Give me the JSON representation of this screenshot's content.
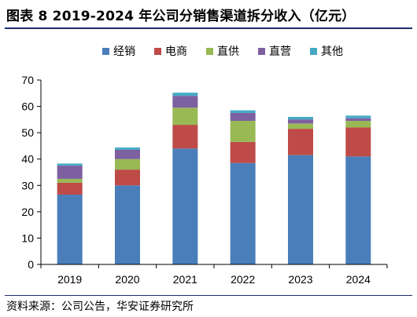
{
  "title": "图表 8 2019-2024 年公司分销售渠道拆分收入（亿元）",
  "source": "资料来源：公司公告，华安证券研究所",
  "chart_data": {
    "type": "bar",
    "stacked": true,
    "categories": [
      "2019",
      "2020",
      "2021",
      "2022",
      "2023",
      "2024"
    ],
    "ylim": [
      0,
      70
    ],
    "yticks": [
      0,
      10,
      20,
      30,
      40,
      50,
      60,
      70
    ],
    "legend_position": "top",
    "grid": false,
    "series": [
      {
        "name": "经销",
        "color": "#4a7ebb",
        "values": [
          26.5,
          30,
          44,
          38.5,
          41.5,
          41
        ]
      },
      {
        "name": "电商",
        "color": "#be4b48",
        "values": [
          4.5,
          6,
          9,
          8,
          10,
          11
        ]
      },
      {
        "name": "直供",
        "color": "#98b954",
        "values": [
          1.5,
          4,
          6.5,
          8,
          2,
          2.5
        ]
      },
      {
        "name": "直营",
        "color": "#7d60a0",
        "values": [
          5,
          3.5,
          4.5,
          3,
          1.5,
          1
        ]
      },
      {
        "name": "其他",
        "color": "#46aac5",
        "values": [
          0.8,
          0.9,
          1.2,
          1.0,
          1.0,
          1.0
        ]
      }
    ]
  }
}
